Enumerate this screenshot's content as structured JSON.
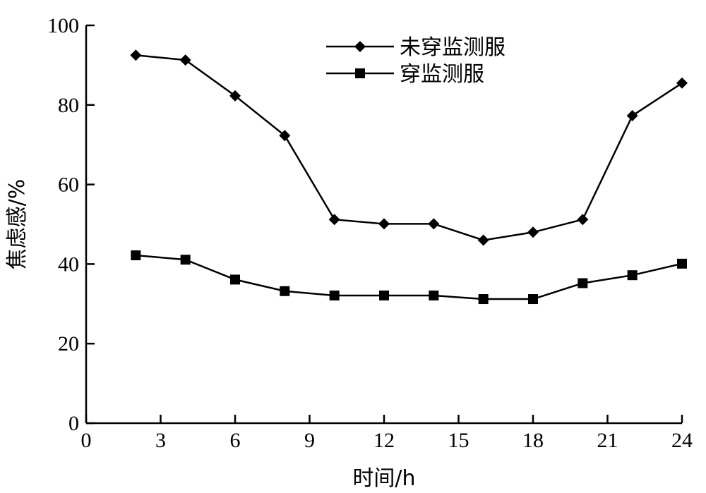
{
  "chart_data": {
    "type": "line",
    "xlabel": "时间/h",
    "ylabel": "焦虑感/%",
    "xlim": [
      0,
      24
    ],
    "ylim": [
      0,
      100
    ],
    "xticks": [
      "0",
      "3",
      "6",
      "9",
      "12",
      "15",
      "18",
      "21",
      "24"
    ],
    "yticks": [
      "0",
      "20",
      "40",
      "60",
      "80",
      "100"
    ],
    "grid": false,
    "legend_position": "top-center",
    "x": [
      2,
      4,
      6,
      8,
      10,
      12,
      14,
      16,
      18,
      20,
      22,
      24
    ],
    "series": [
      {
        "name": "未穿监测服",
        "marker": "diamond",
        "color": "#000000",
        "values": [
          92.5,
          91.3,
          82.3,
          72.3,
          51.2,
          50.1,
          50.1,
          46.0,
          48.0,
          51.2,
          77.3,
          85.5
        ]
      },
      {
        "name": "穿监测服",
        "marker": "square",
        "color": "#000000",
        "values": [
          42.2,
          41.1,
          36.1,
          33.2,
          32.1,
          32.1,
          32.1,
          31.2,
          31.2,
          35.2,
          37.2,
          40.1
        ]
      }
    ]
  }
}
